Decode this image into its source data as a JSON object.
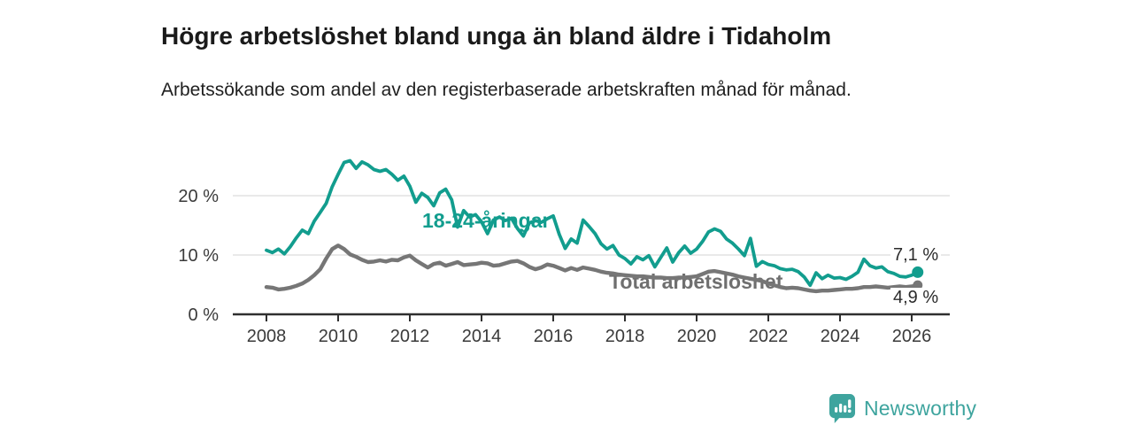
{
  "title": "Högre arbetslöshet bland unga än bland äldre i Tidaholm",
  "subtitle": "Arbetssökande som andel av den registerbaserade arbetskraften månad för månad.",
  "footer": {
    "brand": "Newsworthy",
    "brand_color": "#3ea49e",
    "logo_icon": "bar-chart-speech-bubble-icon"
  },
  "chart_data": {
    "type": "line",
    "title": "Högre arbetslöshet bland unga än bland äldre i Tidaholm",
    "subtitle": "Arbetssökande som andel av den registerbaserade arbetskraften månad för månad.",
    "xlabel": "",
    "ylabel": "",
    "x_start_year": 2008,
    "x_end_year": 2026.17,
    "points_per_year": 6,
    "x_ticks": [
      2008,
      2010,
      2012,
      2014,
      2016,
      2018,
      2020,
      2022,
      2024,
      2026
    ],
    "x_tick_labels": [
      "2008",
      "2010",
      "2012",
      "2014",
      "2016",
      "2018",
      "2020",
      "2022",
      "2024",
      "2026"
    ],
    "y_ticks": [
      0,
      10,
      20
    ],
    "y_tick_labels": [
      "0 %",
      "10 %",
      "20 %"
    ],
    "ylim": [
      0,
      26.5
    ],
    "grid": "horizontal",
    "legend_position": "inline-labels",
    "axis_color": "#2f2f2f",
    "grid_color": "#dcdcdc",
    "tick_label_color": "#3a3a3a",
    "series": [
      {
        "name": "Total arbetslöshet",
        "color": "#767676",
        "line_width": 4.4,
        "end_value_label": "4,9 %",
        "end_value": 4.9,
        "values": [
          4.6,
          4.5,
          4.2,
          4.3,
          4.5,
          4.8,
          5.2,
          5.8,
          6.6,
          7.6,
          9.4,
          11.0,
          11.6,
          11.0,
          10.1,
          9.7,
          9.2,
          8.8,
          8.9,
          9.1,
          8.9,
          9.2,
          9.1,
          9.6,
          9.9,
          9.1,
          8.5,
          7.9,
          8.5,
          8.7,
          8.2,
          8.5,
          8.8,
          8.3,
          8.4,
          8.5,
          8.7,
          8.6,
          8.2,
          8.3,
          8.6,
          8.9,
          9.0,
          8.6,
          8.0,
          7.6,
          7.9,
          8.4,
          8.2,
          7.8,
          7.4,
          7.8,
          7.5,
          7.9,
          7.7,
          7.5,
          7.2,
          7.0,
          6.9,
          6.7,
          6.6,
          6.5,
          6.4,
          6.4,
          6.3,
          6.2,
          6.2,
          6.1,
          6.1,
          6.2,
          6.2,
          6.3,
          6.4,
          6.8,
          7.2,
          7.3,
          7.1,
          6.9,
          6.7,
          6.4,
          6.2,
          6.0,
          5.8,
          5.6,
          5.2,
          4.9,
          4.6,
          4.4,
          4.5,
          4.4,
          4.2,
          4.0,
          3.9,
          4.0,
          4.0,
          4.1,
          4.2,
          4.3,
          4.3,
          4.4,
          4.6,
          4.6,
          4.7,
          4.6,
          4.5,
          4.6,
          4.7,
          4.6,
          4.7,
          4.9
        ]
      },
      {
        "name": "18-24-åringar",
        "color": "#129d8e",
        "line_width": 3.8,
        "end_value_label": "7,1 %",
        "end_value": 7.1,
        "values": [
          10.8,
          10.4,
          11.0,
          10.2,
          11.4,
          12.9,
          14.2,
          13.6,
          15.7,
          17.2,
          18.7,
          21.5,
          23.6,
          25.6,
          25.9,
          24.6,
          25.7,
          25.2,
          24.4,
          24.1,
          24.4,
          23.6,
          22.6,
          23.3,
          21.6,
          18.9,
          20.4,
          19.7,
          18.3,
          20.5,
          21.1,
          19.3,
          14.7,
          17.5,
          16.4,
          16.8,
          15.6,
          13.6,
          15.9,
          16.4,
          15.8,
          16.2,
          14.5,
          13.2,
          15.4,
          15.8,
          15.5,
          16.1,
          16.6,
          13.5,
          11.1,
          12.7,
          12.0,
          15.9,
          14.8,
          13.6,
          11.9,
          11.0,
          11.6,
          10.0,
          9.4,
          8.5,
          9.7,
          9.2,
          9.9,
          8.0,
          9.6,
          11.2,
          8.8,
          10.4,
          11.5,
          10.3,
          11.0,
          12.3,
          13.9,
          14.4,
          14.0,
          12.7,
          12.0,
          11.0,
          9.9,
          12.8,
          8.1,
          8.9,
          8.4,
          8.2,
          7.7,
          7.5,
          7.6,
          7.2,
          6.3,
          4.9,
          7.0,
          6.0,
          6.6,
          6.1,
          6.2,
          5.9,
          6.4,
          7.1,
          9.3,
          8.2,
          7.8,
          8.0,
          7.2,
          6.9,
          6.4,
          6.3,
          6.6,
          7.1
        ]
      }
    ]
  }
}
